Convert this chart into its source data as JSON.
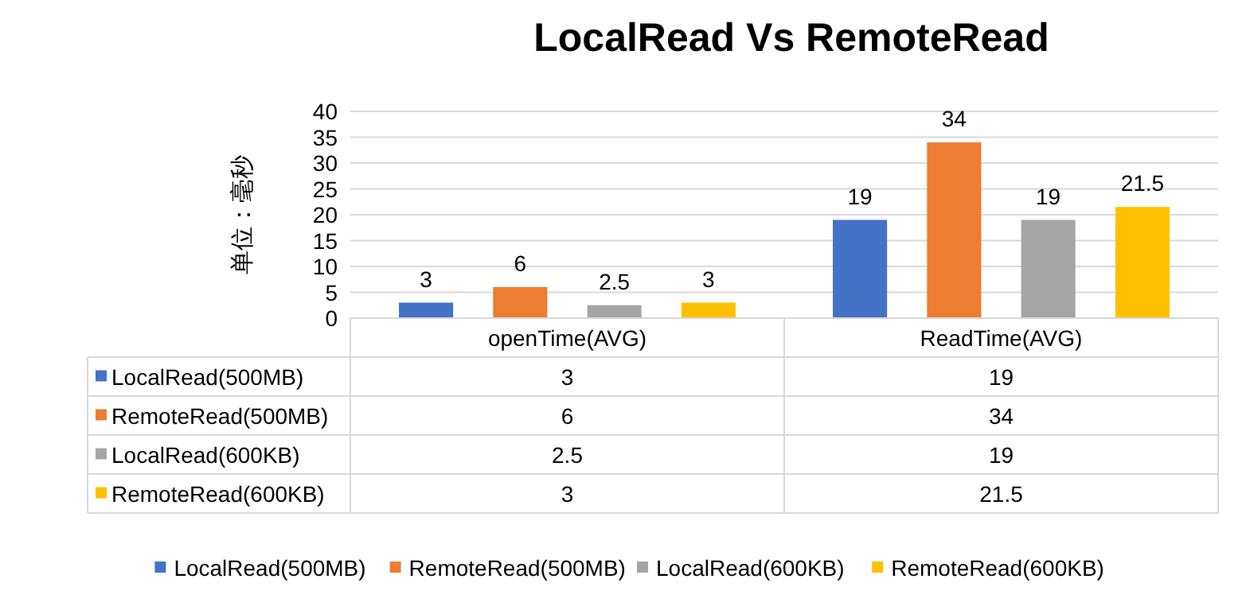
{
  "chart_data": {
    "type": "bar",
    "title": "LocalRead Vs RemoteRead",
    "ylabel": "单位：毫秒",
    "categories": [
      "openTime(AVG)",
      "ReadTime(AVG)"
    ],
    "series": [
      {
        "name": "LocalRead(500MB)",
        "color": "#4472c4",
        "values": [
          3,
          19
        ],
        "value_labels": [
          "3",
          "19"
        ]
      },
      {
        "name": "RemoteRead(500MB)",
        "color": "#ed7d31",
        "values": [
          6,
          34
        ],
        "value_labels": [
          "6",
          "34"
        ]
      },
      {
        "name": "LocalRead(600KB)",
        "color": "#a5a5a5",
        "values": [
          2.5,
          19
        ],
        "value_labels": [
          "2.5",
          "19"
        ]
      },
      {
        "name": "RemoteRead(600KB)",
        "color": "#ffc000",
        "values": [
          3,
          21.5
        ],
        "value_labels": [
          "3",
          "21.5"
        ]
      }
    ],
    "ylim": [
      0,
      40
    ],
    "yticks": [
      0,
      5,
      10,
      15,
      20,
      25,
      30,
      35,
      40
    ],
    "grid": "y",
    "legend": "bottom",
    "data_labels": true,
    "annotations": [
      "3",
      "19",
      "6",
      "34",
      "2.5",
      "19",
      "3",
      "21.5"
    ]
  }
}
